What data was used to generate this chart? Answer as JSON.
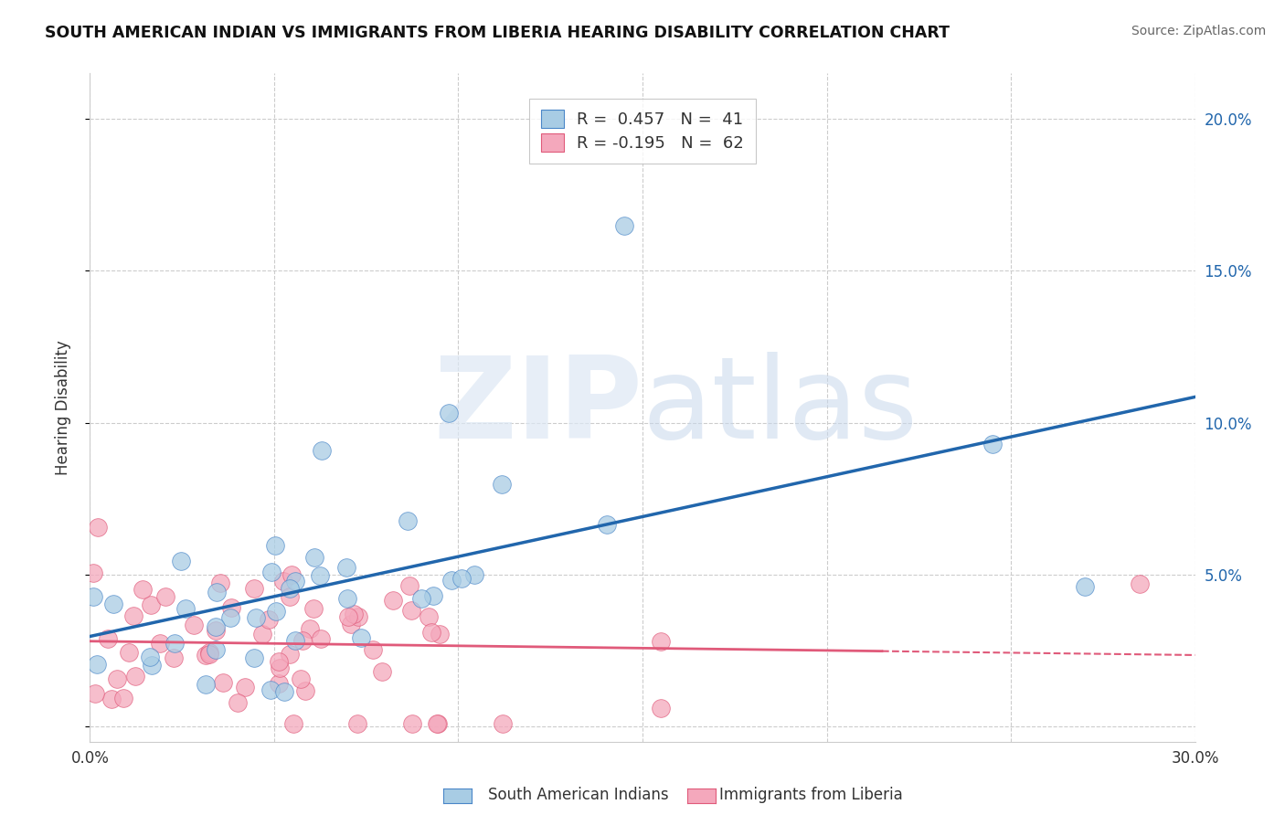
{
  "title": "SOUTH AMERICAN INDIAN VS IMMIGRANTS FROM LIBERIA HEARING DISABILITY CORRELATION CHART",
  "source": "Source: ZipAtlas.com",
  "ylabel": "Hearing Disability",
  "xlim": [
    0.0,
    0.3
  ],
  "ylim": [
    -0.005,
    0.215
  ],
  "yticks": [
    0.0,
    0.05,
    0.1,
    0.15,
    0.2
  ],
  "ytick_labels_right": [
    "",
    "5.0%",
    "10.0%",
    "15.0%",
    "20.0%"
  ],
  "blue_color": "#a8cce4",
  "pink_color": "#f4a8bc",
  "blue_edge_color": "#4a86c8",
  "pink_edge_color": "#e05a7a",
  "blue_line_color": "#2166ac",
  "pink_line_color": "#e05a7a",
  "background_color": "#ffffff",
  "grid_color": "#cccccc",
  "watermark_zip": "ZIP",
  "watermark_atlas": "atlas",
  "series1_label": "South American Indians",
  "series2_label": "Immigrants from Liberia",
  "blue_R": 0.457,
  "blue_N": 41,
  "pink_R": -0.195,
  "pink_N": 62
}
